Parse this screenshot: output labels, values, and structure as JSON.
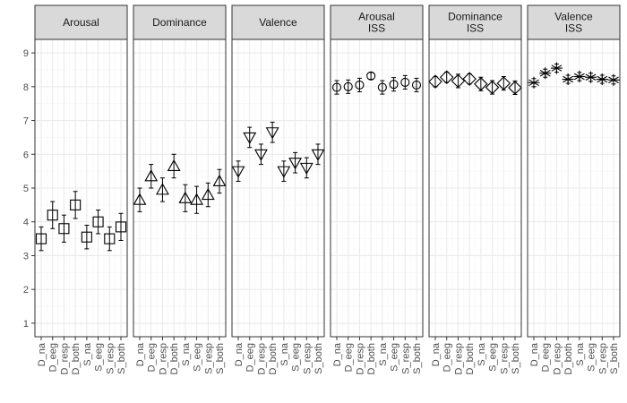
{
  "chart_data": {
    "type": "scatter",
    "subtype": "faceted point-range (mean with error bars)",
    "categories": [
      "D_na",
      "D_eeg",
      "D_resp",
      "D_both",
      "S_na",
      "S_eeg",
      "S_resp",
      "S_both"
    ],
    "ylim": [
      0.6,
      9.4
    ],
    "yticks": [
      1,
      2,
      3,
      4,
      5,
      6,
      7,
      8,
      9
    ],
    "grid": true,
    "colors": {
      "panel_bg": "#ffffff",
      "strip_bg": "#d9d9d9",
      "border": "#333333",
      "grid_major": "#ebebeb",
      "grid_minor": "#f5f5f5",
      "marker": "#000000"
    },
    "facets": [
      {
        "title": [
          "Arousal"
        ],
        "marker": "square",
        "values": [
          3.5,
          4.2,
          3.8,
          4.5,
          3.55,
          4.0,
          3.5,
          3.85
        ],
        "errors": [
          0.35,
          0.4,
          0.4,
          0.4,
          0.35,
          0.35,
          0.35,
          0.4
        ]
      },
      {
        "title": [
          "Dominance"
        ],
        "marker": "triangle-up",
        "values": [
          4.65,
          5.35,
          4.95,
          5.65,
          4.7,
          4.65,
          4.8,
          5.2
        ],
        "errors": [
          0.35,
          0.35,
          0.35,
          0.35,
          0.4,
          0.4,
          0.35,
          0.35
        ]
      },
      {
        "title": [
          "Valence"
        ],
        "marker": "triangle-down",
        "values": [
          5.5,
          6.5,
          6.0,
          6.65,
          5.5,
          5.75,
          5.6,
          6.0
        ],
        "errors": [
          0.3,
          0.3,
          0.3,
          0.3,
          0.3,
          0.3,
          0.3,
          0.3
        ]
      },
      {
        "title": [
          "Arousal",
          "ISS"
        ],
        "marker": "circle",
        "values": [
          7.98,
          8.0,
          8.05,
          8.32,
          7.98,
          8.07,
          8.13,
          8.05
        ],
        "errors": [
          0.2,
          0.2,
          0.2,
          0.1,
          0.2,
          0.2,
          0.2,
          0.2
        ]
      },
      {
        "title": [
          "Dominance",
          "ISS"
        ],
        "marker": "diamond",
        "values": [
          8.15,
          8.28,
          8.17,
          8.23,
          8.08,
          7.98,
          8.1,
          7.97
        ],
        "errors": [
          0.15,
          0.15,
          0.2,
          0.15,
          0.2,
          0.2,
          0.2,
          0.2
        ]
      },
      {
        "title": [
          "Valence",
          "ISS"
        ],
        "marker": "asterisk",
        "values": [
          8.12,
          8.4,
          8.55,
          8.22,
          8.3,
          8.28,
          8.22,
          8.2
        ],
        "errors": [
          0.12,
          0.12,
          0.12,
          0.12,
          0.12,
          0.12,
          0.12,
          0.12
        ]
      }
    ]
  }
}
